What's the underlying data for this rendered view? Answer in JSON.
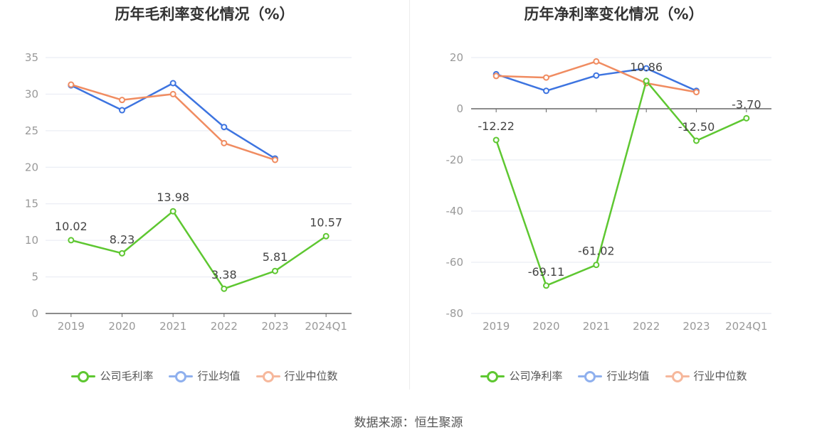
{
  "source": "数据来源：恒生聚源",
  "colors": {
    "company": "#5ec731",
    "avg": "#3d74e0",
    "median": "#f08c61",
    "axis": "#999999",
    "grid": "#e6e9f2"
  },
  "chart_data": [
    {
      "type": "line",
      "title": "历年毛利率变化情况（%）",
      "categories": [
        "2019",
        "2020",
        "2021",
        "2022",
        "2023",
        "2024Q1"
      ],
      "ylim": [
        0,
        35
      ],
      "yticks": [
        0,
        5,
        10,
        15,
        20,
        25,
        30,
        35
      ],
      "legend_position": "bottom",
      "grid": true,
      "series": [
        {
          "name": "公司毛利率",
          "key": "company",
          "values": [
            10.02,
            8.23,
            13.98,
            3.38,
            5.81,
            10.57
          ],
          "labels": [
            "10.02",
            "8.23",
            "13.98",
            "3.38",
            "5.81",
            "10.57"
          ]
        },
        {
          "name": "行业均值",
          "key": "avg",
          "values": [
            31.2,
            27.8,
            31.5,
            25.5,
            21.2,
            null
          ]
        },
        {
          "name": "行业中位数",
          "key": "median",
          "values": [
            31.3,
            29.2,
            30.0,
            23.3,
            21.0,
            null
          ]
        }
      ]
    },
    {
      "type": "line",
      "title": "历年净利率变化情况（%）",
      "categories": [
        "2019",
        "2020",
        "2021",
        "2022",
        "2023",
        "2024Q1"
      ],
      "ylim": [
        -80,
        20
      ],
      "yticks": [
        -80,
        -60,
        -40,
        -20,
        0,
        20
      ],
      "legend_position": "bottom",
      "grid": true,
      "series": [
        {
          "name": "公司净利率",
          "key": "company",
          "values": [
            -12.22,
            -69.11,
            -61.02,
            10.86,
            -12.5,
            -3.7
          ],
          "labels": [
            "-12.22",
            "-69.11",
            "-61.02",
            "10.86",
            "-12.50",
            "-3.70"
          ]
        },
        {
          "name": "行业均值",
          "key": "avg",
          "values": [
            13.5,
            7.0,
            13.0,
            15.8,
            7.0,
            null
          ]
        },
        {
          "name": "行业中位数",
          "key": "median",
          "values": [
            12.8,
            12.2,
            18.5,
            10.0,
            6.5,
            null
          ]
        }
      ]
    }
  ]
}
